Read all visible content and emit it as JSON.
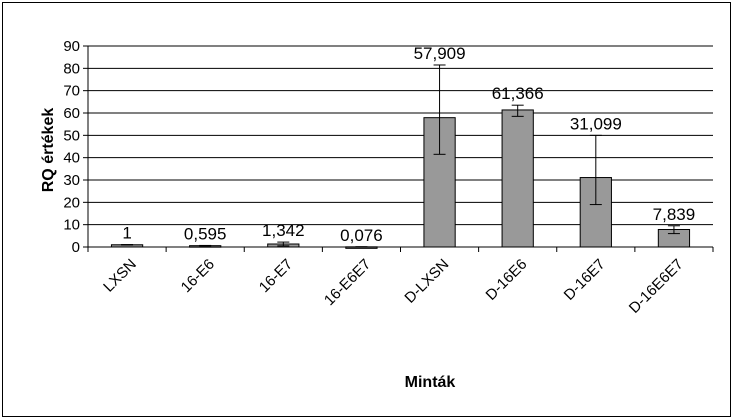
{
  "chart_data": {
    "type": "bar",
    "title": "",
    "xlabel": "Minták",
    "ylabel": "RQ értékek",
    "ylim": [
      0,
      90
    ],
    "yticks": [
      "0",
      "10",
      "20",
      "30",
      "40",
      "50",
      "60",
      "70",
      "80",
      "90"
    ],
    "grid": true,
    "legend": "none",
    "categories": [
      "LXSN",
      "16-E6",
      "16-E7",
      "16-E6E7",
      "D-LXSN",
      "D-16E6",
      "D-16E7",
      "D-16E6E7"
    ],
    "values": [
      1,
      0.595,
      1.342,
      0.076,
      57.909,
      61.366,
      31.099,
      7.839
    ],
    "value_labels": [
      "1",
      "0,595",
      "1,342",
      "0,076",
      "57,909",
      "61,366",
      "31,099",
      "7,839"
    ],
    "error_low": [
      0.9,
      0.5,
      0.5,
      0.05,
      41.5,
      58.5,
      19.0,
      6.0
    ],
    "error_high": [
      1.1,
      0.7,
      2.2,
      0.1,
      81.5,
      63.5,
      50.0,
      9.5
    ],
    "bar_color": "#999999"
  }
}
